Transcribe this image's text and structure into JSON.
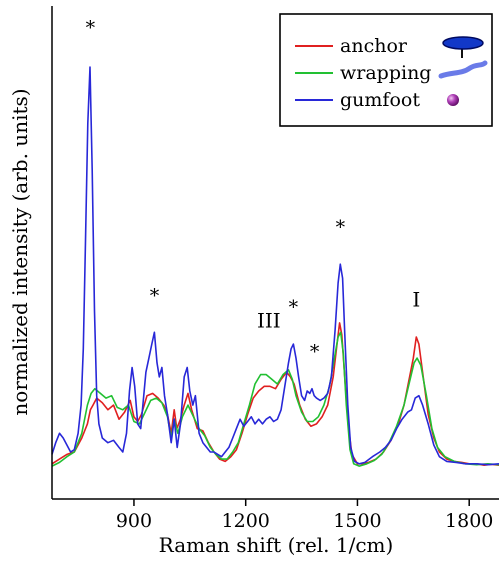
{
  "chart_data": {
    "type": "line",
    "title": "",
    "xlabel": "Raman shift (rel. 1/cm)",
    "ylabel": "normalized intensity (arb. units)",
    "xlim": [
      680,
      1880
    ],
    "ylim": [
      0,
      1.05
    ],
    "x_ticks": [
      900,
      1200,
      1500,
      1800
    ],
    "x_tick_labels": [
      "900",
      "1200",
      "1500",
      "1800"
    ],
    "grid": false,
    "legend_position": "top-right",
    "series": [
      {
        "name": "anchor",
        "color": "#e02020",
        "icon": "anchor-disc-icon",
        "points": [
          [
            680,
            0.075
          ],
          [
            700,
            0.085
          ],
          [
            720,
            0.095
          ],
          [
            740,
            0.1
          ],
          [
            760,
            0.13
          ],
          [
            775,
            0.16
          ],
          [
            783,
            0.19
          ],
          [
            790,
            0.2
          ],
          [
            800,
            0.215
          ],
          [
            815,
            0.205
          ],
          [
            830,
            0.19
          ],
          [
            845,
            0.2
          ],
          [
            860,
            0.17
          ],
          [
            875,
            0.185
          ],
          [
            890,
            0.21
          ],
          [
            900,
            0.175
          ],
          [
            910,
            0.165
          ],
          [
            920,
            0.18
          ],
          [
            935,
            0.22
          ],
          [
            950,
            0.225
          ],
          [
            965,
            0.215
          ],
          [
            980,
            0.2
          ],
          [
            990,
            0.18
          ],
          [
            1000,
            0.14
          ],
          [
            1008,
            0.19
          ],
          [
            1015,
            0.15
          ],
          [
            1025,
            0.17
          ],
          [
            1035,
            0.2
          ],
          [
            1045,
            0.225
          ],
          [
            1055,
            0.19
          ],
          [
            1070,
            0.15
          ],
          [
            1085,
            0.145
          ],
          [
            1100,
            0.12
          ],
          [
            1115,
            0.1
          ],
          [
            1130,
            0.085
          ],
          [
            1145,
            0.08
          ],
          [
            1160,
            0.09
          ],
          [
            1175,
            0.105
          ],
          [
            1190,
            0.14
          ],
          [
            1205,
            0.18
          ],
          [
            1220,
            0.215
          ],
          [
            1235,
            0.23
          ],
          [
            1250,
            0.24
          ],
          [
            1265,
            0.24
          ],
          [
            1280,
            0.235
          ],
          [
            1295,
            0.255
          ],
          [
            1310,
            0.27
          ],
          [
            1320,
            0.26
          ],
          [
            1330,
            0.245
          ],
          [
            1345,
            0.2
          ],
          [
            1360,
            0.17
          ],
          [
            1375,
            0.155
          ],
          [
            1390,
            0.16
          ],
          [
            1405,
            0.175
          ],
          [
            1420,
            0.2
          ],
          [
            1435,
            0.26
          ],
          [
            1445,
            0.33
          ],
          [
            1452,
            0.375
          ],
          [
            1458,
            0.35
          ],
          [
            1465,
            0.27
          ],
          [
            1475,
            0.16
          ],
          [
            1485,
            0.095
          ],
          [
            1500,
            0.075
          ],
          [
            1515,
            0.075
          ],
          [
            1530,
            0.078
          ],
          [
            1550,
            0.085
          ],
          [
            1570,
            0.1
          ],
          [
            1590,
            0.125
          ],
          [
            1610,
            0.16
          ],
          [
            1625,
            0.2
          ],
          [
            1640,
            0.26
          ],
          [
            1650,
            0.3
          ],
          [
            1658,
            0.345
          ],
          [
            1665,
            0.33
          ],
          [
            1675,
            0.27
          ],
          [
            1690,
            0.18
          ],
          [
            1705,
            0.13
          ],
          [
            1720,
            0.1
          ],
          [
            1740,
            0.085
          ],
          [
            1760,
            0.08
          ],
          [
            1780,
            0.078
          ],
          [
            1800,
            0.075
          ],
          [
            1820,
            0.075
          ],
          [
            1840,
            0.072
          ],
          [
            1860,
            0.074
          ],
          [
            1880,
            0.072
          ]
        ]
      },
      {
        "name": "wrapping",
        "color": "#22c032",
        "icon": "wrapping-silk-icon",
        "points": [
          [
            680,
            0.07
          ],
          [
            700,
            0.078
          ],
          [
            720,
            0.09
          ],
          [
            740,
            0.1
          ],
          [
            760,
            0.14
          ],
          [
            775,
            0.2
          ],
          [
            785,
            0.225
          ],
          [
            795,
            0.235
          ],
          [
            810,
            0.225
          ],
          [
            825,
            0.215
          ],
          [
            840,
            0.22
          ],
          [
            855,
            0.195
          ],
          [
            870,
            0.19
          ],
          [
            885,
            0.2
          ],
          [
            900,
            0.165
          ],
          [
            915,
            0.16
          ],
          [
            930,
            0.185
          ],
          [
            945,
            0.21
          ],
          [
            960,
            0.215
          ],
          [
            975,
            0.205
          ],
          [
            990,
            0.175
          ],
          [
            1000,
            0.13
          ],
          [
            1008,
            0.17
          ],
          [
            1018,
            0.14
          ],
          [
            1030,
            0.175
          ],
          [
            1045,
            0.2
          ],
          [
            1060,
            0.175
          ],
          [
            1075,
            0.15
          ],
          [
            1090,
            0.135
          ],
          [
            1105,
            0.11
          ],
          [
            1120,
            0.095
          ],
          [
            1135,
            0.085
          ],
          [
            1150,
            0.085
          ],
          [
            1165,
            0.1
          ],
          [
            1180,
            0.12
          ],
          [
            1195,
            0.16
          ],
          [
            1210,
            0.2
          ],
          [
            1225,
            0.245
          ],
          [
            1240,
            0.265
          ],
          [
            1255,
            0.265
          ],
          [
            1270,
            0.255
          ],
          [
            1285,
            0.245
          ],
          [
            1300,
            0.265
          ],
          [
            1315,
            0.275
          ],
          [
            1325,
            0.255
          ],
          [
            1335,
            0.22
          ],
          [
            1350,
            0.185
          ],
          [
            1365,
            0.165
          ],
          [
            1380,
            0.165
          ],
          [
            1395,
            0.175
          ],
          [
            1410,
            0.2
          ],
          [
            1425,
            0.24
          ],
          [
            1438,
            0.3
          ],
          [
            1448,
            0.345
          ],
          [
            1455,
            0.355
          ],
          [
            1462,
            0.31
          ],
          [
            1470,
            0.2
          ],
          [
            1480,
            0.105
          ],
          [
            1490,
            0.075
          ],
          [
            1505,
            0.07
          ],
          [
            1525,
            0.075
          ],
          [
            1545,
            0.082
          ],
          [
            1565,
            0.095
          ],
          [
            1585,
            0.12
          ],
          [
            1605,
            0.155
          ],
          [
            1625,
            0.2
          ],
          [
            1640,
            0.25
          ],
          [
            1652,
            0.29
          ],
          [
            1660,
            0.3
          ],
          [
            1670,
            0.285
          ],
          [
            1685,
            0.22
          ],
          [
            1700,
            0.15
          ],
          [
            1715,
            0.11
          ],
          [
            1735,
            0.09
          ],
          [
            1760,
            0.08
          ],
          [
            1790,
            0.075
          ],
          [
            1820,
            0.073
          ],
          [
            1850,
            0.075
          ],
          [
            1880,
            0.073
          ]
        ]
      },
      {
        "name": "gumfoot",
        "color": "#2828d8",
        "icon": "gumfoot-drop-icon",
        "points": [
          [
            680,
            0.095
          ],
          [
            690,
            0.12
          ],
          [
            700,
            0.14
          ],
          [
            710,
            0.13
          ],
          [
            720,
            0.115
          ],
          [
            730,
            0.1
          ],
          [
            740,
            0.105
          ],
          [
            750,
            0.14
          ],
          [
            758,
            0.2
          ],
          [
            764,
            0.32
          ],
          [
            770,
            0.55
          ],
          [
            776,
            0.8
          ],
          [
            782,
            0.92
          ],
          [
            788,
            0.7
          ],
          [
            794,
            0.4
          ],
          [
            800,
            0.22
          ],
          [
            806,
            0.16
          ],
          [
            815,
            0.13
          ],
          [
            830,
            0.12
          ],
          [
            845,
            0.125
          ],
          [
            860,
            0.11
          ],
          [
            870,
            0.1
          ],
          [
            880,
            0.14
          ],
          [
            888,
            0.23
          ],
          [
            895,
            0.28
          ],
          [
            902,
            0.24
          ],
          [
            910,
            0.16
          ],
          [
            918,
            0.15
          ],
          [
            925,
            0.21
          ],
          [
            932,
            0.27
          ],
          [
            940,
            0.3
          ],
          [
            948,
            0.33
          ],
          [
            955,
            0.355
          ],
          [
            962,
            0.29
          ],
          [
            968,
            0.26
          ],
          [
            975,
            0.28
          ],
          [
            982,
            0.22
          ],
          [
            990,
            0.18
          ],
          [
            1000,
            0.12
          ],
          [
            1008,
            0.17
          ],
          [
            1016,
            0.11
          ],
          [
            1025,
            0.16
          ],
          [
            1035,
            0.26
          ],
          [
            1043,
            0.28
          ],
          [
            1050,
            0.23
          ],
          [
            1058,
            0.2
          ],
          [
            1065,
            0.22
          ],
          [
            1075,
            0.14
          ],
          [
            1085,
            0.12
          ],
          [
            1095,
            0.11
          ],
          [
            1105,
            0.1
          ],
          [
            1115,
            0.1
          ],
          [
            1125,
            0.095
          ],
          [
            1135,
            0.09
          ],
          [
            1145,
            0.1
          ],
          [
            1155,
            0.11
          ],
          [
            1165,
            0.13
          ],
          [
            1175,
            0.15
          ],
          [
            1185,
            0.17
          ],
          [
            1195,
            0.155
          ],
          [
            1205,
            0.165
          ],
          [
            1215,
            0.175
          ],
          [
            1225,
            0.16
          ],
          [
            1235,
            0.17
          ],
          [
            1245,
            0.16
          ],
          [
            1255,
            0.17
          ],
          [
            1265,
            0.175
          ],
          [
            1275,
            0.165
          ],
          [
            1285,
            0.17
          ],
          [
            1295,
            0.19
          ],
          [
            1305,
            0.24
          ],
          [
            1315,
            0.29
          ],
          [
            1322,
            0.32
          ],
          [
            1328,
            0.33
          ],
          [
            1335,
            0.3
          ],
          [
            1342,
            0.26
          ],
          [
            1350,
            0.22
          ],
          [
            1358,
            0.21
          ],
          [
            1365,
            0.23
          ],
          [
            1372,
            0.225
          ],
          [
            1378,
            0.235
          ],
          [
            1384,
            0.22
          ],
          [
            1390,
            0.215
          ],
          [
            1400,
            0.21
          ],
          [
            1410,
            0.215
          ],
          [
            1420,
            0.225
          ],
          [
            1430,
            0.26
          ],
          [
            1440,
            0.36
          ],
          [
            1448,
            0.46
          ],
          [
            1454,
            0.5
          ],
          [
            1460,
            0.47
          ],
          [
            1466,
            0.35
          ],
          [
            1474,
            0.2
          ],
          [
            1482,
            0.11
          ],
          [
            1492,
            0.08
          ],
          [
            1505,
            0.075
          ],
          [
            1520,
            0.078
          ],
          [
            1540,
            0.09
          ],
          [
            1560,
            0.1
          ],
          [
            1575,
            0.11
          ],
          [
            1590,
            0.125
          ],
          [
            1605,
            0.15
          ],
          [
            1620,
            0.17
          ],
          [
            1635,
            0.185
          ],
          [
            1645,
            0.19
          ],
          [
            1655,
            0.215
          ],
          [
            1665,
            0.22
          ],
          [
            1675,
            0.2
          ],
          [
            1690,
            0.16
          ],
          [
            1705,
            0.115
          ],
          [
            1720,
            0.09
          ],
          [
            1740,
            0.08
          ],
          [
            1765,
            0.078
          ],
          [
            1790,
            0.075
          ],
          [
            1820,
            0.075
          ],
          [
            1850,
            0.073
          ],
          [
            1880,
            0.075
          ]
        ]
      }
    ],
    "annotations": [
      {
        "text": "*",
        "x": 783,
        "y": 0.99,
        "style": "star"
      },
      {
        "text": "*",
        "x": 955,
        "y": 0.42,
        "style": "star"
      },
      {
        "text": "III",
        "x": 1262,
        "y": 0.365,
        "style": "roman"
      },
      {
        "text": "*",
        "x": 1328,
        "y": 0.395,
        "style": "star"
      },
      {
        "text": "*",
        "x": 1385,
        "y": 0.3,
        "style": "star"
      },
      {
        "text": "*",
        "x": 1454,
        "y": 0.565,
        "style": "star"
      },
      {
        "text": "I",
        "x": 1658,
        "y": 0.41,
        "style": "roman"
      }
    ]
  }
}
